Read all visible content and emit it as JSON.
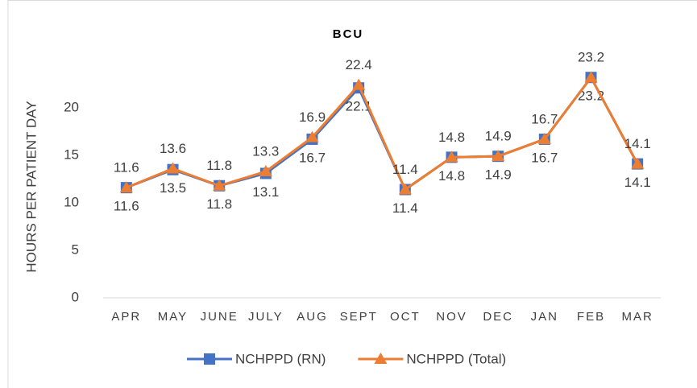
{
  "chart_data": {
    "type": "line",
    "title": "BCU",
    "y_label": "HOURS PER PATIENT DAY",
    "categories": [
      "APR",
      "MAY",
      "JUNE",
      "JULY",
      "AUG",
      "SEPT",
      "OCT",
      "NOV",
      "DEC",
      "JAN",
      "FEB",
      "MAR"
    ],
    "series": [
      {
        "name": "NCHPPD (RN)",
        "color": "#4472c4",
        "marker": "square",
        "values": [
          11.6,
          13.5,
          11.8,
          13.1,
          16.7,
          22.1,
          11.4,
          14.8,
          14.9,
          16.7,
          23.2,
          14.1
        ]
      },
      {
        "name": "NCHPPD (Total)",
        "color": "#ed7d31",
        "marker": "triangle",
        "values": [
          11.6,
          13.6,
          11.8,
          13.3,
          16.9,
          22.4,
          11.4,
          14.8,
          14.9,
          16.7,
          23.2,
          14.1
        ]
      }
    ],
    "ylim": [
      0,
      25
    ],
    "yticks": [
      0,
      5,
      10,
      15,
      20
    ],
    "grid": false,
    "legend": "bottom"
  }
}
